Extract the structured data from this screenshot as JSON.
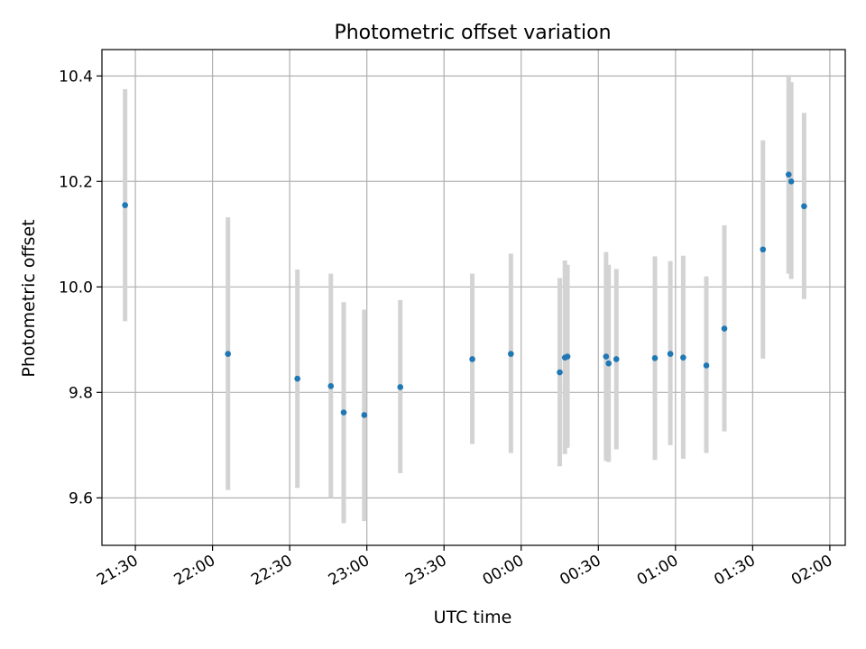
{
  "chart_data": {
    "type": "scatter",
    "title": "Photometric offset variation",
    "xlabel": "UTC time",
    "ylabel": "Photometric offset",
    "x_ticks": [
      "21:30",
      "22:00",
      "22:30",
      "23:00",
      "23:30",
      "00:00",
      "00:30",
      "01:00",
      "01:30",
      "02:00"
    ],
    "y_ticks": [
      "9.6",
      "9.8",
      "10.0",
      "10.2",
      "10.4"
    ],
    "xlim": [
      "21:17",
      "02:06"
    ],
    "ylim": [
      9.51,
      10.45
    ],
    "grid": true,
    "point_color": "#1f77b4",
    "errorbar_color": "#d3d3d3",
    "series": [
      {
        "points": [
          {
            "x": "21:26",
            "y": 10.155,
            "lo": 9.935,
            "hi": 10.375
          },
          {
            "x": "22:06",
            "y": 9.873,
            "lo": 9.615,
            "hi": 10.132
          },
          {
            "x": "22:33",
            "y": 9.826,
            "lo": 9.619,
            "hi": 10.033
          },
          {
            "x": "22:46",
            "y": 9.812,
            "lo": 9.6,
            "hi": 10.025
          },
          {
            "x": "22:51",
            "y": 9.762,
            "lo": 9.552,
            "hi": 9.971
          },
          {
            "x": "22:59",
            "y": 9.757,
            "lo": 9.556,
            "hi": 9.957
          },
          {
            "x": "23:13",
            "y": 9.81,
            "lo": 9.647,
            "hi": 9.975
          },
          {
            "x": "23:41",
            "y": 9.863,
            "lo": 9.702,
            "hi": 10.025
          },
          {
            "x": "23:56",
            "y": 9.873,
            "lo": 9.685,
            "hi": 10.063
          },
          {
            "x": "00:15",
            "y": 9.838,
            "lo": 9.66,
            "hi": 10.017
          },
          {
            "x": "00:17",
            "y": 9.866,
            "lo": 9.683,
            "hi": 10.05
          },
          {
            "x": "00:18",
            "y": 9.868,
            "lo": 9.695,
            "hi": 10.042
          },
          {
            "x": "00:33",
            "y": 9.868,
            "lo": 9.67,
            "hi": 10.066
          },
          {
            "x": "00:34",
            "y": 9.855,
            "lo": 9.668,
            "hi": 10.042
          },
          {
            "x": "00:37",
            "y": 9.863,
            "lo": 9.692,
            "hi": 10.034
          },
          {
            "x": "00:52",
            "y": 9.865,
            "lo": 9.672,
            "hi": 10.058
          },
          {
            "x": "00:58",
            "y": 9.873,
            "lo": 9.7,
            "hi": 10.049
          },
          {
            "x": "01:03",
            "y": 9.866,
            "lo": 9.674,
            "hi": 10.059
          },
          {
            "x": "01:12",
            "y": 9.851,
            "lo": 9.685,
            "hi": 10.02
          },
          {
            "x": "01:19",
            "y": 9.921,
            "lo": 9.726,
            "hi": 10.117
          },
          {
            "x": "01:34",
            "y": 10.071,
            "lo": 9.864,
            "hi": 10.278
          },
          {
            "x": "01:44",
            "y": 10.213,
            "lo": 10.025,
            "hi": 10.402
          },
          {
            "x": "01:45",
            "y": 10.2,
            "lo": 10.015,
            "hi": 10.388
          },
          {
            "x": "01:50",
            "y": 10.153,
            "lo": 9.977,
            "hi": 10.33
          }
        ]
      }
    ]
  }
}
